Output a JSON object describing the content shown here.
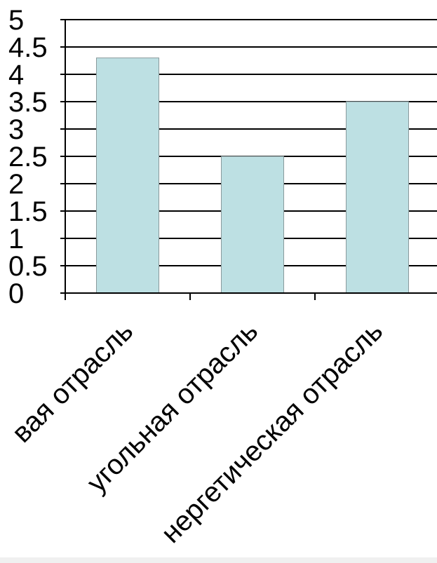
{
  "chart_data": {
    "type": "bar",
    "categories": [
      "вая отрасль",
      "угольная отрасль",
      "нергетическая отрасль"
    ],
    "values": [
      4.3,
      2.5,
      3.5
    ],
    "ylim": [
      0,
      5
    ],
    "yticks": [
      "0",
      "0.5",
      "1",
      "1.5",
      "2",
      "2.5",
      "3",
      "3.5",
      "4",
      "4.5",
      "5"
    ],
    "grid": true,
    "legend": "none",
    "colors": {
      "bar": "#bde0e3",
      "bar_stroke": "#8a9a9c",
      "grid": "#000000"
    }
  }
}
